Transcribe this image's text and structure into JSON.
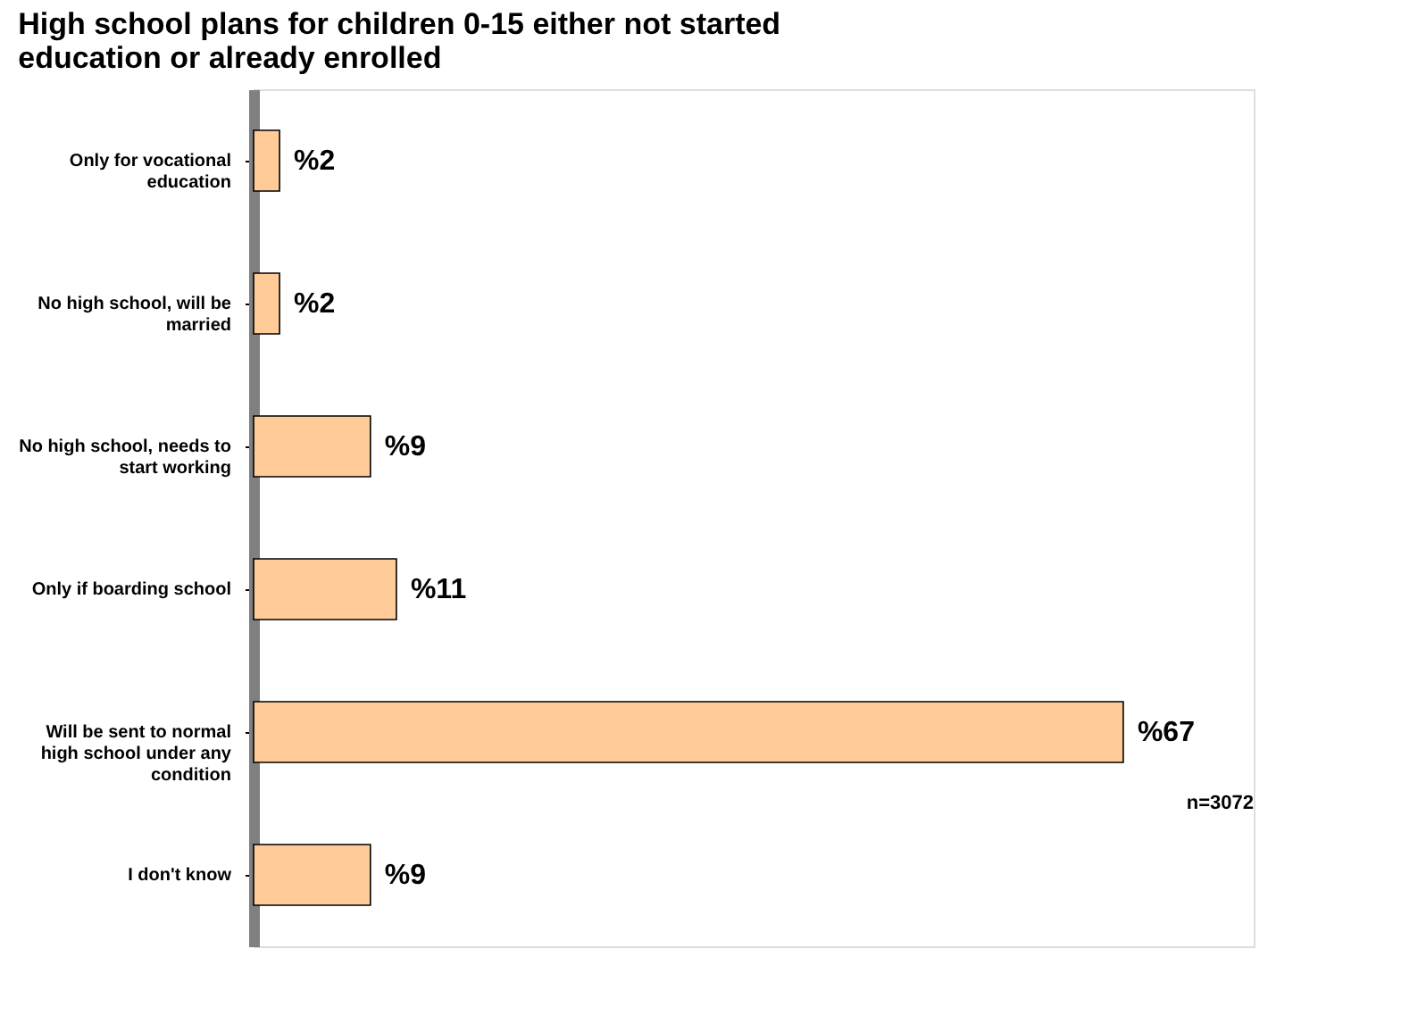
{
  "chart_data": {
    "type": "bar",
    "orientation": "horizontal",
    "title": "High school plans for children 0-15 either not started education or already enrolled",
    "categories": [
      "Only for vocational education",
      "No high school, will be married",
      "No high school, needs to start working",
      "Only if boarding school",
      "Will be sent to normal high school under any condition",
      "I don't know"
    ],
    "values": [
      2,
      2,
      9,
      11,
      67,
      9
    ],
    "value_labels": [
      "%2",
      "%2",
      "%9",
      "%11",
      "%67",
      "%9"
    ],
    "color": "#ffcc99",
    "annotations": [
      "n=3072"
    ]
  }
}
